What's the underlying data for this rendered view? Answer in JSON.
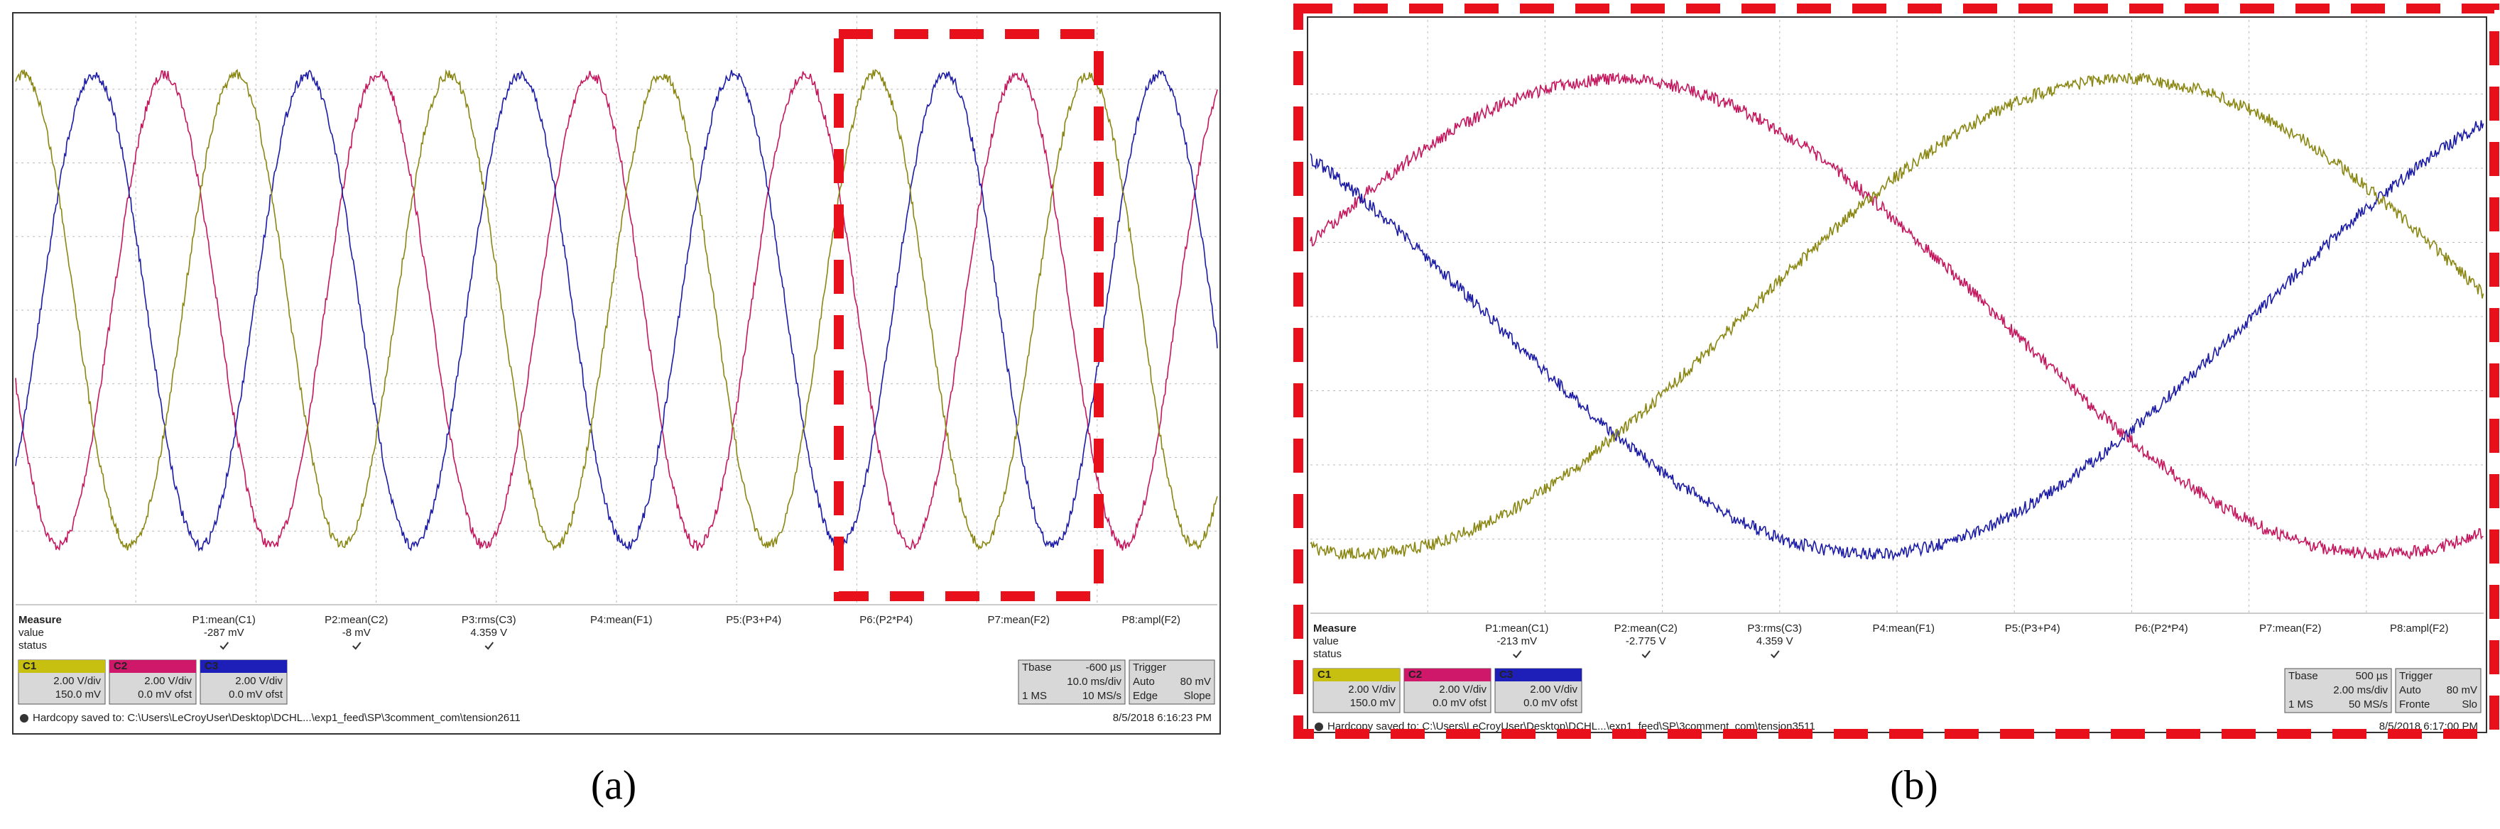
{
  "panels": [
    {
      "caption": "(a)",
      "measure": {
        "heading": "Measure",
        "row_labels": [
          "value",
          "status"
        ],
        "params": [
          {
            "name": "P1:mean(C1)",
            "value": "-287 mV"
          },
          {
            "name": "P2:mean(C2)",
            "value": "-8 mV"
          },
          {
            "name": "P3:rms(C3)",
            "value": "4.359 V"
          },
          {
            "name": "P4:mean(F1)"
          },
          {
            "name": "P5:(P3+P4)"
          },
          {
            "name": "P6:(P2*P4)"
          },
          {
            "name": "P7:mean(F2)"
          },
          {
            "name": "P8:ampl(F2)"
          }
        ]
      },
      "channels": [
        {
          "id": "C1",
          "scale": "2.00 V/div",
          "offset": "150.0 mV"
        },
        {
          "id": "C2",
          "scale": "2.00 V/div",
          "offset": "0.0 mV ofst"
        },
        {
          "id": "C3",
          "scale": "2.00 V/div",
          "offset": "0.0 mV ofst"
        }
      ],
      "timebase": {
        "label": "Tbase",
        "delay": "-600 µs",
        "scale": "10.0 ms/div",
        "points": "1 MS",
        "rate": "10 MS/s"
      },
      "trigger": {
        "label": "Trigger",
        "mode": "Auto",
        "level": "80 mV",
        "type": "Edge",
        "slope": "Slope"
      },
      "footer": "Hardcopy saved to: C:\\Users\\LeCroyUser\\Desktop\\DCHL...\\exp1_feed\\SP\\3comment_com\\tension2611",
      "timestamp": "8/5/2018 6:16:23 PM"
    },
    {
      "caption": "(b)",
      "measure": {
        "heading": "Measure",
        "row_labels": [
          "value",
          "status"
        ],
        "params": [
          {
            "name": "P1:mean(C1)",
            "value": "-213 mV"
          },
          {
            "name": "P2:mean(C2)",
            "value": "-2.775 V"
          },
          {
            "name": "P3:rms(C3)",
            "value": "4.359 V"
          },
          {
            "name": "P4:mean(F1)"
          },
          {
            "name": "P5:(P3+P4)"
          },
          {
            "name": "P6:(P2*P4)"
          },
          {
            "name": "P7:mean(F2)"
          },
          {
            "name": "P8:ampl(F2)"
          }
        ]
      },
      "channels": [
        {
          "id": "C1",
          "scale": "2.00 V/div",
          "offset": "150.0 mV"
        },
        {
          "id": "C2",
          "scale": "2.00 V/div",
          "offset": "0.0 mV ofst"
        },
        {
          "id": "C3",
          "scale": "2.00 V/div",
          "offset": "0.0 mV ofst"
        }
      ],
      "timebase": {
        "label": "Tbase",
        "delay": "500 µs",
        "scale": "2.00 ms/div",
        "points": "1 MS",
        "rate": "50 MS/s"
      },
      "trigger": {
        "label": "Trigger",
        "mode": "Auto",
        "level": "80 mV",
        "type": "Fronte",
        "slope": "Slo"
      },
      "footer": "Hardcopy saved to: C:\\Users\\LeCroyUser\\Desktop\\DCHL...\\exp1_feed\\SP\\3comment_com\\tension3511",
      "timestamp": "8/5/2018 6:17:00 PM"
    }
  ]
}
